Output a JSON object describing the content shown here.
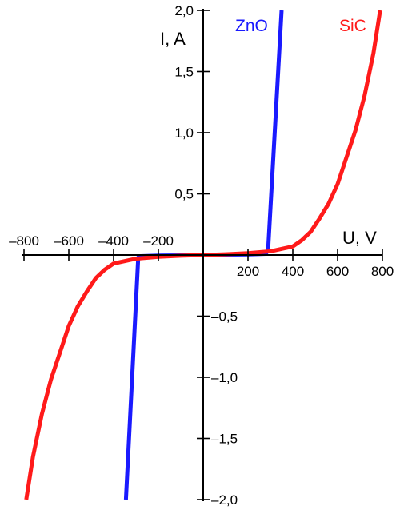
{
  "chart_data": {
    "type": "line",
    "title": "",
    "xlabel": "U, V",
    "ylabel": "I, A",
    "xlim": [
      -800,
      800
    ],
    "ylim": [
      -2.0,
      2.0
    ],
    "grid": false,
    "x_ticks": [
      -800,
      -600,
      -400,
      -200,
      200,
      400,
      600,
      800
    ],
    "x_tick_labels": [
      "–800",
      "–600",
      "–400",
      "–200",
      "200",
      "400",
      "600",
      "800"
    ],
    "y_ticks": [
      2.0,
      1.5,
      1.0,
      0.5,
      -0.5,
      -1.0,
      -1.5,
      -2.0
    ],
    "y_tick_labels": [
      "2,0",
      "1,5",
      "1,0",
      "0,5",
      "–0,5",
      "–1,0",
      "–1,5",
      "–2,0"
    ],
    "series": [
      {
        "name": "ZnO",
        "color": "#1a1aff",
        "x": [
          -345,
          -290,
          -280,
          -200,
          -100,
          0,
          100,
          200,
          280,
          290,
          350
        ],
        "y": [
          -2.0,
          -0.02,
          -0.01,
          -0.005,
          -0.003,
          0.0,
          0.003,
          0.005,
          0.01,
          0.05,
          2.0
        ]
      },
      {
        "name": "SiC",
        "color": "#ff1a1a",
        "x": [
          -790,
          -760,
          -720,
          -680,
          -640,
          -600,
          -560,
          -520,
          -480,
          -440,
          -400,
          -300,
          -200,
          -100,
          0,
          100,
          200,
          300,
          400,
          440,
          480,
          520,
          560,
          600,
          640,
          680,
          720,
          760,
          790
        ],
        "y": [
          -2.0,
          -1.65,
          -1.3,
          -1.02,
          -0.8,
          -0.58,
          -0.42,
          -0.3,
          -0.19,
          -0.12,
          -0.07,
          -0.03,
          -0.015,
          -0.006,
          0.0,
          0.006,
          0.015,
          0.03,
          0.07,
          0.12,
          0.19,
          0.3,
          0.42,
          0.58,
          0.8,
          1.02,
          1.3,
          1.65,
          2.0
        ]
      }
    ]
  }
}
